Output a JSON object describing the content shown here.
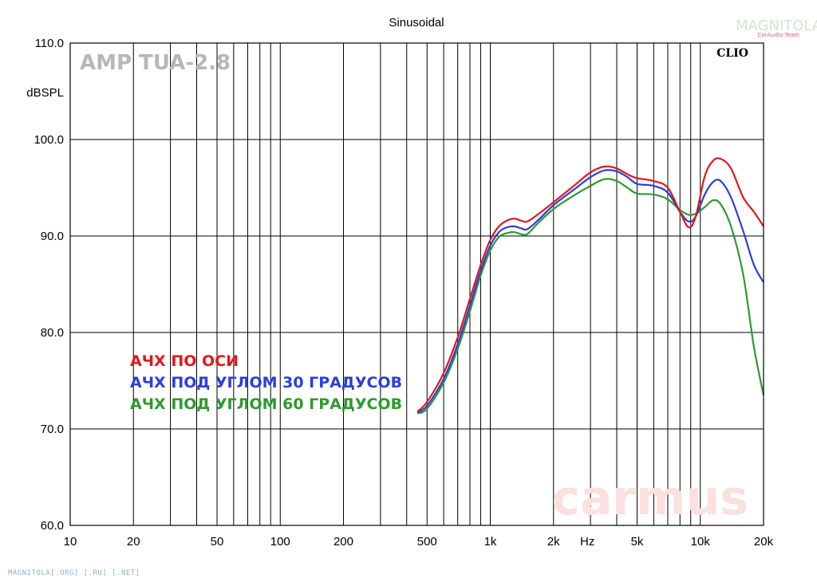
{
  "header": {
    "title": "Sinusoidal"
  },
  "watermarks": {
    "model": "AMP TUA-2.8",
    "clio": "CLIO",
    "carmus": "carmus",
    "logo_main": "MAGNITOLA",
    "logo_sub": "CarAudio Team"
  },
  "footer": {
    "text": "MAGNITOLA[.ORG] [.RU] [.NET]"
  },
  "legend": [
    {
      "label": "АЧХ ПО ОСИ",
      "color": "#e3171b"
    },
    {
      "label": "АЧХ ПОД УГЛОМ 30 ГРАДУСОВ",
      "color": "#2b3ee0"
    },
    {
      "label": "АЧХ ПОД УГЛОМ 60 ГРАДУСОВ",
      "color": "#2e9a2e"
    }
  ],
  "chart_data": {
    "type": "line",
    "title": "Sinusoidal",
    "ylabel": "dBSPL",
    "xunit": "Hz",
    "xscale": "log",
    "xlim": [
      10,
      20000
    ],
    "ylim": [
      60,
      110
    ],
    "grid": true,
    "x_tick_labels": [
      {
        "value": 10,
        "label": "10"
      },
      {
        "value": 20,
        "label": "20"
      },
      {
        "value": 50,
        "label": "50"
      },
      {
        "value": 100,
        "label": "100"
      },
      {
        "value": 200,
        "label": "200"
      },
      {
        "value": 500,
        "label": "500"
      },
      {
        "value": 1000,
        "label": "1k"
      },
      {
        "value": 2000,
        "label": "2k"
      },
      {
        "value": 5000,
        "label": "5k"
      },
      {
        "value": 10000,
        "label": "10k"
      },
      {
        "value": 20000,
        "label": "20k"
      }
    ],
    "y_tick_labels": [
      {
        "value": 110,
        "label": "110.0"
      },
      {
        "value": 100,
        "label": "100.0"
      },
      {
        "value": 90,
        "label": "90.0"
      },
      {
        "value": 80,
        "label": "80.0"
      },
      {
        "value": 70,
        "label": "70.0"
      },
      {
        "value": 60,
        "label": "60.0"
      }
    ],
    "series": [
      {
        "name": "АЧХ ПО ОСИ",
        "color": "#e3171b",
        "points": [
          [
            450,
            71.8
          ],
          [
            500,
            72.8
          ],
          [
            600,
            75.8
          ],
          [
            700,
            79.5
          ],
          [
            800,
            83.5
          ],
          [
            900,
            87.0
          ],
          [
            1000,
            89.6
          ],
          [
            1100,
            91.0
          ],
          [
            1200,
            91.6
          ],
          [
            1300,
            91.8
          ],
          [
            1400,
            91.6
          ],
          [
            1500,
            91.5
          ],
          [
            1700,
            92.3
          ],
          [
            2000,
            93.5
          ],
          [
            2500,
            95.2
          ],
          [
            3000,
            96.6
          ],
          [
            3500,
            97.2
          ],
          [
            4000,
            97.0
          ],
          [
            4500,
            96.4
          ],
          [
            5000,
            96.0
          ],
          [
            6000,
            95.7
          ],
          [
            7000,
            95.0
          ],
          [
            8000,
            92.5
          ],
          [
            8800,
            90.9
          ],
          [
            9500,
            92.0
          ],
          [
            10500,
            96.2
          ],
          [
            11500,
            97.8
          ],
          [
            12500,
            98.0
          ],
          [
            14000,
            97.0
          ],
          [
            16000,
            94.0
          ],
          [
            18000,
            92.5
          ],
          [
            20000,
            91.0
          ]
        ]
      },
      {
        "name": "АЧХ ПОД УГЛОМ 30 ГРАДУСОВ",
        "color": "#2b3ee0",
        "points": [
          [
            450,
            71.7
          ],
          [
            500,
            72.4
          ],
          [
            600,
            75.2
          ],
          [
            700,
            78.8
          ],
          [
            800,
            82.8
          ],
          [
            900,
            86.4
          ],
          [
            1000,
            89.0
          ],
          [
            1100,
            90.4
          ],
          [
            1200,
            90.9
          ],
          [
            1300,
            91.0
          ],
          [
            1400,
            90.8
          ],
          [
            1500,
            90.7
          ],
          [
            1700,
            91.7
          ],
          [
            2000,
            93.2
          ],
          [
            2500,
            94.8
          ],
          [
            3000,
            96.1
          ],
          [
            3500,
            96.8
          ],
          [
            4000,
            96.7
          ],
          [
            4500,
            96.1
          ],
          [
            5000,
            95.4
          ],
          [
            6000,
            95.2
          ],
          [
            7000,
            94.5
          ],
          [
            8000,
            92.5
          ],
          [
            8800,
            91.5
          ],
          [
            9500,
            92.0
          ],
          [
            10500,
            94.3
          ],
          [
            11500,
            95.6
          ],
          [
            12500,
            95.7
          ],
          [
            14000,
            94.0
          ],
          [
            16000,
            90.5
          ],
          [
            18000,
            87.0
          ],
          [
            20000,
            85.2
          ]
        ]
      },
      {
        "name": "АЧХ ПОД УГЛОМ 60 ГРАДУСОВ",
        "color": "#2e9a2e",
        "points": [
          [
            450,
            71.6
          ],
          [
            500,
            72.1
          ],
          [
            600,
            74.8
          ],
          [
            700,
            78.3
          ],
          [
            800,
            82.2
          ],
          [
            900,
            85.9
          ],
          [
            1000,
            88.5
          ],
          [
            1100,
            89.9
          ],
          [
            1200,
            90.3
          ],
          [
            1300,
            90.4
          ],
          [
            1400,
            90.2
          ],
          [
            1500,
            90.2
          ],
          [
            1700,
            91.4
          ],
          [
            2000,
            92.8
          ],
          [
            2500,
            94.2
          ],
          [
            3000,
            95.2
          ],
          [
            3500,
            95.9
          ],
          [
            4000,
            95.7
          ],
          [
            4500,
            95.0
          ],
          [
            5000,
            94.4
          ],
          [
            6000,
            94.3
          ],
          [
            7000,
            93.8
          ],
          [
            8000,
            92.7
          ],
          [
            8800,
            92.2
          ],
          [
            9500,
            92.3
          ],
          [
            10500,
            93.0
          ],
          [
            11500,
            93.7
          ],
          [
            12500,
            93.3
          ],
          [
            14000,
            91.0
          ],
          [
            16000,
            86.0
          ],
          [
            18000,
            78.5
          ],
          [
            20000,
            73.5
          ]
        ]
      }
    ]
  }
}
